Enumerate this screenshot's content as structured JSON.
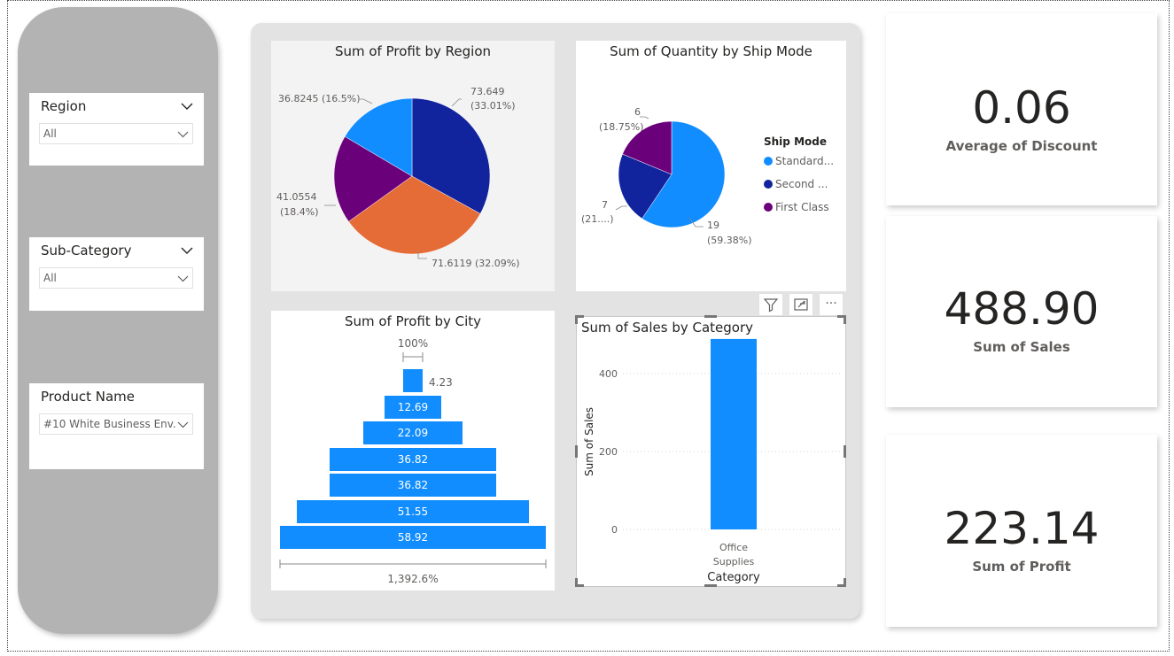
{
  "slicers": [
    {
      "title": "Region",
      "value": "All"
    },
    {
      "title": "Sub-Category",
      "value": "All"
    },
    {
      "title": "Product Name",
      "value": "#10 White Business Env..."
    }
  ],
  "profit_by_region": {
    "title": "Sum of Profit by Region",
    "labels": [
      {
        "line1": "73.649",
        "line2": "(33.01%)"
      },
      {
        "line1": "71.6119 (32.09%)",
        "line2": ""
      },
      {
        "line1": "41.0554",
        "line2": "(18.4%)"
      },
      {
        "line1": "36.8245 (16.5%)",
        "line2": ""
      }
    ]
  },
  "quantity_by_ship_mode": {
    "title": "Sum of Quantity by Ship Mode",
    "legend_title": "Ship Mode",
    "legend": [
      "Standard...",
      "Second ...",
      "First Class"
    ],
    "labels": [
      {
        "line1": "19",
        "line2": "(59.38%)"
      },
      {
        "line1": "7",
        "line2": "(21....)"
      },
      {
        "line1": "6",
        "line2": "(18.75%)"
      }
    ]
  },
  "profit_by_city": {
    "title": "Sum of Profit by City",
    "top_pct": "100%",
    "bottom_pct": "1,392.6%"
  },
  "sales_by_category": {
    "title": "Sum of Sales by Category",
    "ylabel": "Sum of Sales",
    "xlabel": "Category",
    "yticks": [
      "400",
      "200",
      "0"
    ],
    "category_line1": "Office",
    "category_line2": "Supplies"
  },
  "kpis": [
    {
      "value": "0.06",
      "label": "Average of Discount"
    },
    {
      "value": "488.90",
      "label": "Sum of Sales"
    },
    {
      "value": "223.14",
      "label": "Sum of Profit"
    }
  ],
  "visual_header": {
    "icons": [
      "filter-icon",
      "focus-mode-icon",
      "more-options-icon"
    ],
    "more_label": "···"
  },
  "colors": {
    "blue": "#118dff",
    "dark_blue": "#12239e",
    "orange": "#e66c37",
    "purple": "#6b007b"
  },
  "chart_data": [
    {
      "type": "pie",
      "title": "Sum of Profit by Region",
      "slices": [
        {
          "value": 73.649,
          "pct": 33.01,
          "color": "#12239e"
        },
        {
          "value": 71.6119,
          "pct": 32.09,
          "color": "#e66c37"
        },
        {
          "value": 41.0554,
          "pct": 18.4,
          "color": "#6b007b"
        },
        {
          "value": 36.8245,
          "pct": 16.5,
          "color": "#118dff"
        }
      ]
    },
    {
      "type": "pie",
      "title": "Sum of Quantity by Ship Mode",
      "slices": [
        {
          "name": "Standard...",
          "value": 19,
          "pct": 59.38,
          "color": "#118dff"
        },
        {
          "name": "Second ...",
          "value": 7,
          "pct": 21.88,
          "color": "#12239e"
        },
        {
          "name": "First Class",
          "value": 6,
          "pct": 18.75,
          "color": "#6b007b"
        }
      ]
    },
    {
      "type": "funnel",
      "title": "Sum of Profit by City",
      "values": [
        4.23,
        12.69,
        22.09,
        36.82,
        36.82,
        51.55,
        58.92
      ],
      "labels": [
        "",
        "12.69",
        "22.09",
        "36.82",
        "36.82",
        "51.55",
        "58.92"
      ],
      "side_label": "4.23"
    },
    {
      "type": "bar",
      "title": "Sum of Sales by Category",
      "categories": [
        "Office Supplies"
      ],
      "values": [
        488.9
      ],
      "xlabel": "Category",
      "ylabel": "Sum of Sales",
      "ylim": [
        0,
        500
      ]
    }
  ]
}
